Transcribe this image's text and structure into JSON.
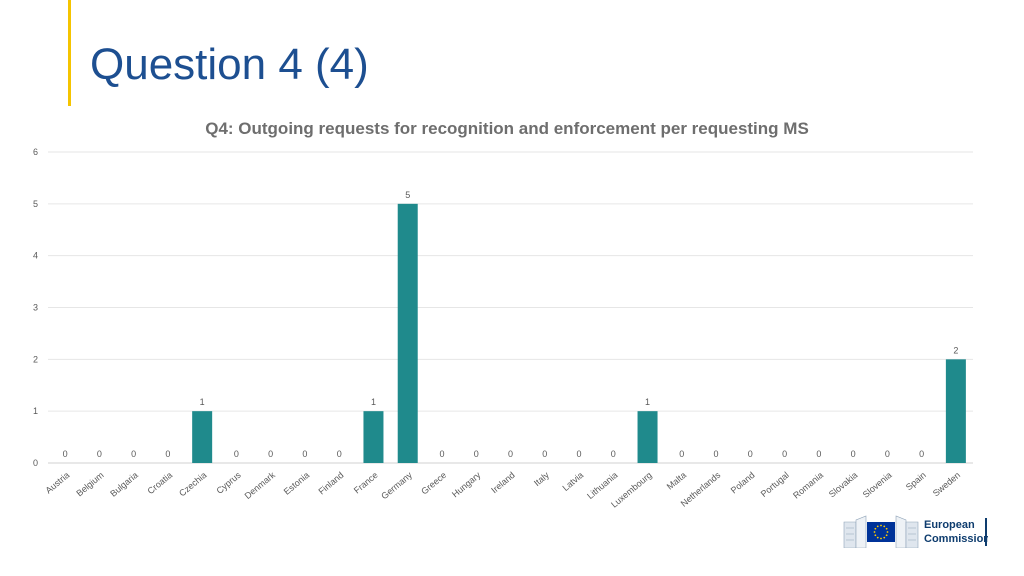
{
  "slide": {
    "title": "Question 4 (4)"
  },
  "logo": {
    "line1": "European",
    "line2": "Commission"
  },
  "colors": {
    "accent": "#f5c400",
    "title": "#1d4f91",
    "bar": "#1f8a8c",
    "logo_blue": "#0e3c6e",
    "eu_flag": "#003399",
    "eu_star": "#ffcc00"
  },
  "chart_data": {
    "type": "bar",
    "title": "Q4: Outgoing requests for recognition and enforcement per requesting MS",
    "xlabel": "",
    "ylabel": "",
    "ylim": [
      0,
      6
    ],
    "yticks": [
      0,
      1,
      2,
      3,
      4,
      5,
      6
    ],
    "grid": true,
    "legend": "none",
    "categories": [
      "Austria",
      "Belgium",
      "Bulgaria",
      "Croatia",
      "Czechia",
      "Cyprus",
      "Denmark",
      "Estonia",
      "Finland",
      "France",
      "Germany",
      "Greece",
      "Hungary",
      "Ireland",
      "Italy",
      "Latvia",
      "Lithuania",
      "Luxembourg",
      "Malta",
      "Netherlands",
      "Poland",
      "Portugal",
      "Romania",
      "Slovakia",
      "Slovenia",
      "Spain",
      "Sweden"
    ],
    "values": [
      0,
      0,
      0,
      0,
      1,
      0,
      0,
      0,
      0,
      1,
      5,
      0,
      0,
      0,
      0,
      0,
      0,
      1,
      0,
      0,
      0,
      0,
      0,
      0,
      0,
      0,
      2
    ]
  }
}
